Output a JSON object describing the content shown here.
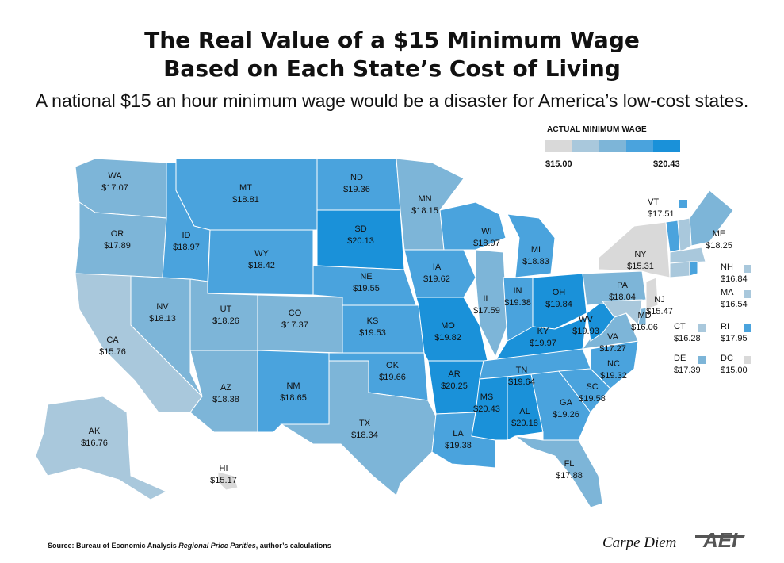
{
  "title_line1": "The Real Value of a $15 Minimum Wage",
  "title_line2": "Based on Each State’s Cost of Living",
  "subtitle": "A national $15 an hour minimum wage would be a disaster for America’s low-cost states.",
  "legend": {
    "title": "ACTUAL MINIMUM WAGE",
    "min_label": "$15.00",
    "max_label": "$20.43",
    "colors": [
      "#d9d9d9",
      "#a9c8dc",
      "#7db5d8",
      "#4aa3dd",
      "#1a91d9"
    ]
  },
  "states": [
    {
      "abbr": "WA",
      "value": "$17.07"
    },
    {
      "abbr": "OR",
      "value": "$17.89"
    },
    {
      "abbr": "CA",
      "value": "$15.76"
    },
    {
      "abbr": "NV",
      "value": "$18.13"
    },
    {
      "abbr": "ID",
      "value": "$18.97"
    },
    {
      "abbr": "MT",
      "value": "$18.81"
    },
    {
      "abbr": "WY",
      "value": "$18.42"
    },
    {
      "abbr": "UT",
      "value": "$18.26"
    },
    {
      "abbr": "AZ",
      "value": "$18.38"
    },
    {
      "abbr": "CO",
      "value": "$17.37"
    },
    {
      "abbr": "NM",
      "value": "$18.65"
    },
    {
      "abbr": "ND",
      "value": "$19.36"
    },
    {
      "abbr": "SD",
      "value": "$20.13"
    },
    {
      "abbr": "NE",
      "value": "$19.55"
    },
    {
      "abbr": "KS",
      "value": "$19.53"
    },
    {
      "abbr": "OK",
      "value": "$19.66"
    },
    {
      "abbr": "TX",
      "value": "$18.34"
    },
    {
      "abbr": "MN",
      "value": "$18.15"
    },
    {
      "abbr": "IA",
      "value": "$19.62"
    },
    {
      "abbr": "MO",
      "value": "$19.82"
    },
    {
      "abbr": "AR",
      "value": "$20.25"
    },
    {
      "abbr": "LA",
      "value": "$19.38"
    },
    {
      "abbr": "WI",
      "value": "$18.97"
    },
    {
      "abbr": "IL",
      "value": "$17.59"
    },
    {
      "abbr": "MI",
      "value": "$18.83"
    },
    {
      "abbr": "IN",
      "value": "$19.38"
    },
    {
      "abbr": "OH",
      "value": "$19.84"
    },
    {
      "abbr": "KY",
      "value": "$19.97"
    },
    {
      "abbr": "TN",
      "value": "$19.64"
    },
    {
      "abbr": "MS",
      "value": "$20.43"
    },
    {
      "abbr": "AL",
      "value": "$20.18"
    },
    {
      "abbr": "GA",
      "value": "$19.26"
    },
    {
      "abbr": "FL",
      "value": "$17.88"
    },
    {
      "abbr": "SC",
      "value": "$19.58"
    },
    {
      "abbr": "NC",
      "value": "$19.32"
    },
    {
      "abbr": "VA",
      "value": "$17.27"
    },
    {
      "abbr": "WV",
      "value": "$19.93"
    },
    {
      "abbr": "PA",
      "value": "$18.04"
    },
    {
      "abbr": "NY",
      "value": "$15.31"
    },
    {
      "abbr": "ME",
      "value": "$18.25"
    },
    {
      "abbr": "MD",
      "value": "$16.06"
    },
    {
      "abbr": "NJ",
      "value": "$15.47"
    },
    {
      "abbr": "AK",
      "value": "$16.76"
    },
    {
      "abbr": "HI",
      "value": "$15.17"
    }
  ],
  "small_states": [
    {
      "abbr": "VT",
      "value": "$17.51",
      "color": "#4aa3dd"
    },
    {
      "abbr": "NH",
      "value": "$16.84",
      "color": "#a9c8dc"
    },
    {
      "abbr": "MA",
      "value": "$16.54",
      "color": "#a9c8dc"
    },
    {
      "abbr": "CT",
      "value": "$16.28",
      "color": "#a9c8dc"
    },
    {
      "abbr": "RI",
      "value": "$17.95",
      "color": "#4aa3dd"
    },
    {
      "abbr": "DE",
      "value": "$17.39",
      "color": "#7db5d8"
    },
    {
      "abbr": "DC",
      "value": "$15.00",
      "color": "#d9d9d9"
    }
  ],
  "source_prefix": "Source: Bureau of Economic Analysis ",
  "source_italic": "Regional Price Parities",
  "source_suffix": ", author’s calculations",
  "brand": "Carpe Diem",
  "logo_text": "AEI"
}
